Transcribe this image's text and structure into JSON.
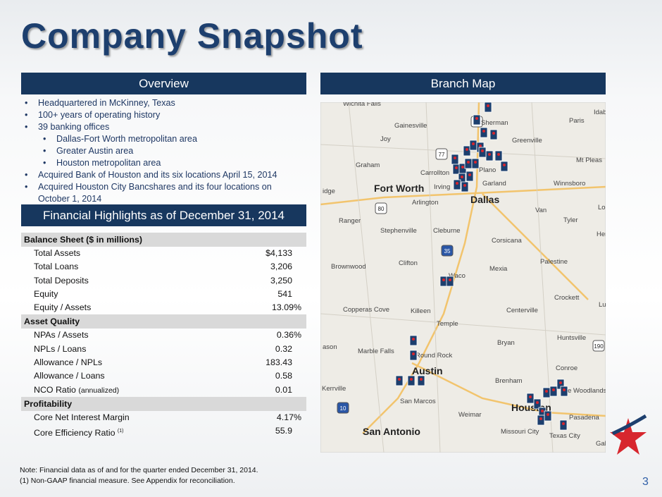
{
  "header": {
    "title": "Company Snapshot"
  },
  "overview": {
    "heading": "Overview",
    "bullets": [
      {
        "text": "Headquartered in McKinney, Texas",
        "level": 1
      },
      {
        "text": "100+ years of operating history",
        "level": 1
      },
      {
        "text": "39 banking offices",
        "level": 1
      },
      {
        "text": "Dallas-Fort Worth metropolitan area",
        "level": 2
      },
      {
        "text": "Greater Austin area",
        "level": 2
      },
      {
        "text": "Houston metropolitan area",
        "level": 2
      },
      {
        "text": "Acquired Bank of Houston and its six locations April 15, 2014",
        "level": 1
      },
      {
        "text": "Acquired Houston City Bancshares and its four locations on October 1, 2014",
        "level": 1
      }
    ]
  },
  "financials": {
    "heading": "Financial Highlights as of December 31, 2014",
    "sections": [
      {
        "title": "Balance Sheet ($ in millions)",
        "rows": [
          {
            "label": "Total Assets",
            "value": "$4,133"
          },
          {
            "label": "Total Loans",
            "value": "3,206"
          },
          {
            "label": "Total Deposits",
            "value": "3,250"
          },
          {
            "label": "Equity",
            "value": "541"
          },
          {
            "label": "Equity / Assets",
            "value": "13.09%"
          }
        ]
      },
      {
        "title": "Asset Quality",
        "rows": [
          {
            "label": "NPAs / Assets",
            "value": "0.36%"
          },
          {
            "label": "NPLs / Loans",
            "value": "0.32"
          },
          {
            "label": "Allowance / NPLs",
            "value": "183.43"
          },
          {
            "label": "Allowance / Loans",
            "value": "0.58"
          },
          {
            "label": "NCO Ratio",
            "note": "(annualized)",
            "value": "0.01"
          }
        ]
      },
      {
        "title": "Profitability",
        "rows": [
          {
            "label": "Core Net Interest Margin",
            "value": "4.17%"
          },
          {
            "label": "Core Efficiency Ratio",
            "sup": "(1)",
            "value": "55.9"
          }
        ]
      }
    ]
  },
  "map": {
    "heading": "Branch Map",
    "labels": [
      "Wichita Falls",
      "Sherman",
      "Paris",
      "Gainesville",
      "Idabel",
      "Joy",
      "Greenville",
      "Mt Pleas",
      "Graham",
      "Carrollton",
      "Plano",
      "Garland",
      "Winnsboro",
      "Fort Worth",
      "Irving",
      "Dallas",
      "Arlington",
      "Van",
      "Lo",
      "Ranger",
      "Tyler",
      "Stephenville",
      "Cleburne",
      "Hen",
      "Corsicana",
      "Brownwood",
      "Clifton",
      "Mexia",
      "Palestine",
      "Waco",
      "Crockett",
      "Copperas Cove",
      "Killeen",
      "Centerville",
      "Lu",
      "Temple",
      "Bryan",
      "Huntsville",
      "ason",
      "Marble Falls",
      "Round Rock",
      "Austin",
      "Conroe",
      "Brenham",
      "The Woodlands",
      "Kerrville",
      "San Marcos",
      "Weimar",
      "Houston",
      "Pasadena",
      "San Antonio",
      "Missouri City",
      "Texas City",
      "Gal",
      "idge"
    ],
    "highways": [
      "75",
      "77",
      "80",
      "35",
      "10",
      "190"
    ]
  },
  "footer": {
    "note": "Note: Financial data as of and for the quarter ended December 31, 2014.",
    "footnote": "(1)    Non-GAAP financial measure. See Appendix for reconciliation.",
    "page": "3"
  }
}
